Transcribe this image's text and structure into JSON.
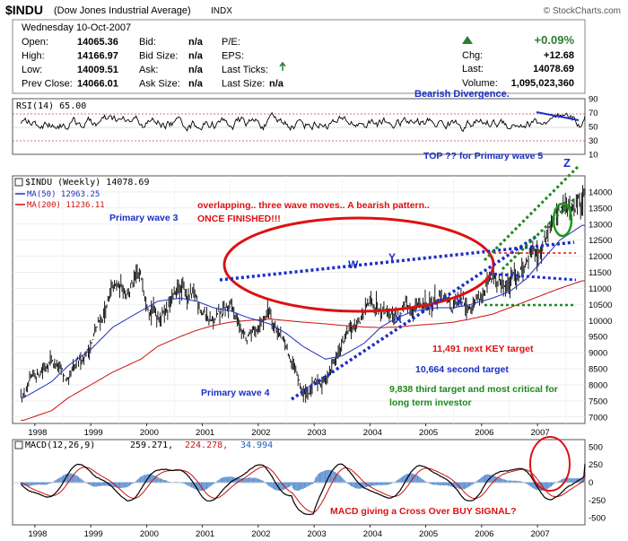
{
  "header": {
    "symbol": "$INDU",
    "name": "(Dow Jones Industrial Average)",
    "exchange": "INDX",
    "brand": "© StockCharts.com",
    "date": "Wednesday  10-Oct-2007",
    "rows": [
      [
        "Open:",
        "14065.36",
        "Bid:",
        "n/a",
        "P/E:",
        ""
      ],
      [
        "High:",
        "14166.97",
        "Bid Size:",
        "n/a",
        "EPS:",
        ""
      ],
      [
        "Low:",
        "14009.51",
        "Ask:",
        "n/a",
        "Last Ticks:",
        ""
      ],
      [
        "Prev Close:",
        "14066.01",
        "Ask Size:",
        "n/a",
        "Last Size:",
        "n/a"
      ]
    ],
    "pct_change": "+0.09%",
    "chg_label": "Chg:",
    "chg_value": "+12.68",
    "last_label": "Last:",
    "last_value": "14078.69",
    "volume_label": "Volume:",
    "volume_value": "1,095,023,360",
    "up_color": "#2e7d32"
  },
  "rsi_panel": {
    "title": "RSI(14) 65.00",
    "annotation": "Bearish Divergence.",
    "axis": [
      "90",
      "70",
      "50",
      "30",
      "10"
    ]
  },
  "price_panel": {
    "legend_title": "$INDU (Weekly) 14078.69",
    "ma50_label": "MA(50) 12963.25",
    "ma200_label": "MA(200) 11236.11",
    "ma50_color": "#1f2fbf",
    "ma200_color": "#cc1111",
    "y_ticks": [
      "14000",
      "13500",
      "13000",
      "12500",
      "12000",
      "11500",
      "11000",
      "10500",
      "10000",
      "9500",
      "9000",
      "8500",
      "8000",
      "7500",
      "7000"
    ],
    "annotations": {
      "top": "TOP ??  for Primary wave 5",
      "z": "Z",
      "overlap_line1": "overlapping.. three wave moves..  A bearish pattern..",
      "overlap_line2": "ONCE FINISHED!!!",
      "wave3": "Primary wave 3",
      "wave4": "Primary wave 4",
      "w": "W",
      "y": "Y",
      "x1": "X",
      "x2": "X",
      "target1": "11,491 next KEY target",
      "target2": "10,664 second target",
      "target3_line1": "9,838 third target and most critical for",
      "target3_line2": "long term investor"
    }
  },
  "macd_panel": {
    "title_prefix": "MACD(12,26,9)",
    "v1": "259.271,",
    "v2": "224.278,",
    "v3": "34.994",
    "axis": [
      "500",
      "250",
      "0",
      "-250",
      "-500"
    ],
    "annotation": "MACD  giving a Cross Over  BUY SIGNAL?"
  },
  "x_axis_labels": [
    "1998",
    "1999",
    "2000",
    "2001",
    "2002",
    "2003",
    "2004",
    "2005",
    "2006",
    "2007"
  ],
  "chart_data": {
    "type": "line",
    "title": "$INDU (Dow Jones Industrial Average) Weekly",
    "xlabel": "",
    "ylabel": "",
    "ylim": [
      6800,
      14500
    ],
    "x": [
      "1997.8",
      "1998.3",
      "1998.6",
      "1999.0",
      "1999.4",
      "1999.9",
      "2000.2",
      "2000.6",
      "2000.9",
      "2001.2",
      "2001.5",
      "2001.8",
      "2002.2",
      "2002.5",
      "2002.8",
      "2003.2",
      "2003.5",
      "2003.9",
      "2004.2",
      "2004.5",
      "2004.8",
      "2005.2",
      "2005.5",
      "2005.8",
      "2006.2",
      "2006.5",
      "2006.8",
      "2007.1",
      "2007.4",
      "2007.8"
    ],
    "series": [
      {
        "name": "$INDU (Weekly)",
        "values": [
          7700,
          8900,
          8000,
          9300,
          10900,
          11200,
          10200,
          10900,
          10600,
          9900,
          10400,
          9300,
          10400,
          9100,
          7700,
          8200,
          9200,
          10300,
          10600,
          10200,
          10400,
          10700,
          10400,
          10600,
          11100,
          11100,
          11900,
          12500,
          13500,
          14080
        ]
      },
      {
        "name": "MA(50)",
        "values": [
          7600,
          8100,
          8600,
          9100,
          9800,
          10300,
          10600,
          10700,
          10600,
          10400,
          10300,
          10100,
          9900,
          9600,
          9200,
          8800,
          8900,
          9300,
          9800,
          10100,
          10300,
          10400,
          10400,
          10500,
          10700,
          10900,
          11300,
          11900,
          12500,
          12963
        ]
      },
      {
        "name": "MA(200)",
        "values": [
          6900,
          7200,
          7600,
          8000,
          8400,
          8800,
          9200,
          9500,
          9700,
          9850,
          9950,
          10000,
          10050,
          10000,
          9950,
          9900,
          9850,
          9800,
          9780,
          9800,
          9850,
          9900,
          9950,
          10050,
          10200,
          10400,
          10600,
          10800,
          11000,
          11236
        ]
      }
    ],
    "rsi": {
      "name": "RSI(14)",
      "ylim": [
        10,
        90
      ],
      "last": 65
    },
    "macd": {
      "name": "MACD(12,26,9)",
      "ylim": [
        -600,
        600
      ],
      "macd": 259.271,
      "signal": 224.278,
      "histogram": 34.994
    }
  }
}
